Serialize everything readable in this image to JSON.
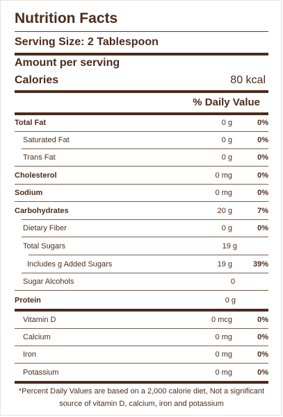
{
  "title": "Nutrition Facts",
  "serving": "Serving Size: 2 Tablespoon",
  "amount_per_serving": "Amount per serving",
  "calories": {
    "label": "Calories",
    "value": "80 kcal"
  },
  "daily_value_header": "% Daily Value",
  "nutrients": {
    "total_fat": {
      "label": "Total Fat",
      "amount": "0 g",
      "dv": "0%"
    },
    "saturated_fat": {
      "label": "Saturated Fat",
      "amount": "0 g",
      "dv": "0%"
    },
    "trans_fat": {
      "label": "Trans Fat",
      "amount": "0 g",
      "dv": "0%"
    },
    "cholesterol": {
      "label": "Cholesterol",
      "amount": "0 mg",
      "dv": "0%"
    },
    "sodium": {
      "label": "Sodium",
      "amount": "0 mg",
      "dv": "0%"
    },
    "carbohydrates": {
      "label": "Carbohydrates",
      "amount": "20 g",
      "dv": "7%"
    },
    "dietary_fiber": {
      "label": "Dietary Fiber",
      "amount": "0 g",
      "dv": "0%"
    },
    "total_sugars": {
      "label": "Total Sugars",
      "amount": "19 g",
      "dv": ""
    },
    "added_sugars": {
      "label": "Includes g Added Sugars",
      "amount": "19 g",
      "dv": "39%"
    },
    "sugar_alcohols": {
      "label": "Sugar Alcohols",
      "amount": "0",
      "dv": ""
    },
    "protein": {
      "label": "Protein",
      "amount": "0 g",
      "dv": ""
    },
    "vitamin_d": {
      "label": "Vitamin D",
      "amount": "0 mcg",
      "dv": "0%"
    },
    "calcium": {
      "label": "Calcium",
      "amount": "0 mg",
      "dv": "0%"
    },
    "iron": {
      "label": "Iron",
      "amount": "0 mg",
      "dv": "0%"
    },
    "potassium": {
      "label": "Potassium",
      "amount": "0 mg",
      "dv": "0%"
    }
  },
  "footnote": "*Percent Daily Values are based on a 2,000 calorie diet, Not a significant source of vitamin D, calcium, iron and potassium",
  "colors": {
    "text": "#4a2c1c",
    "rule": "#4a2c1c"
  }
}
